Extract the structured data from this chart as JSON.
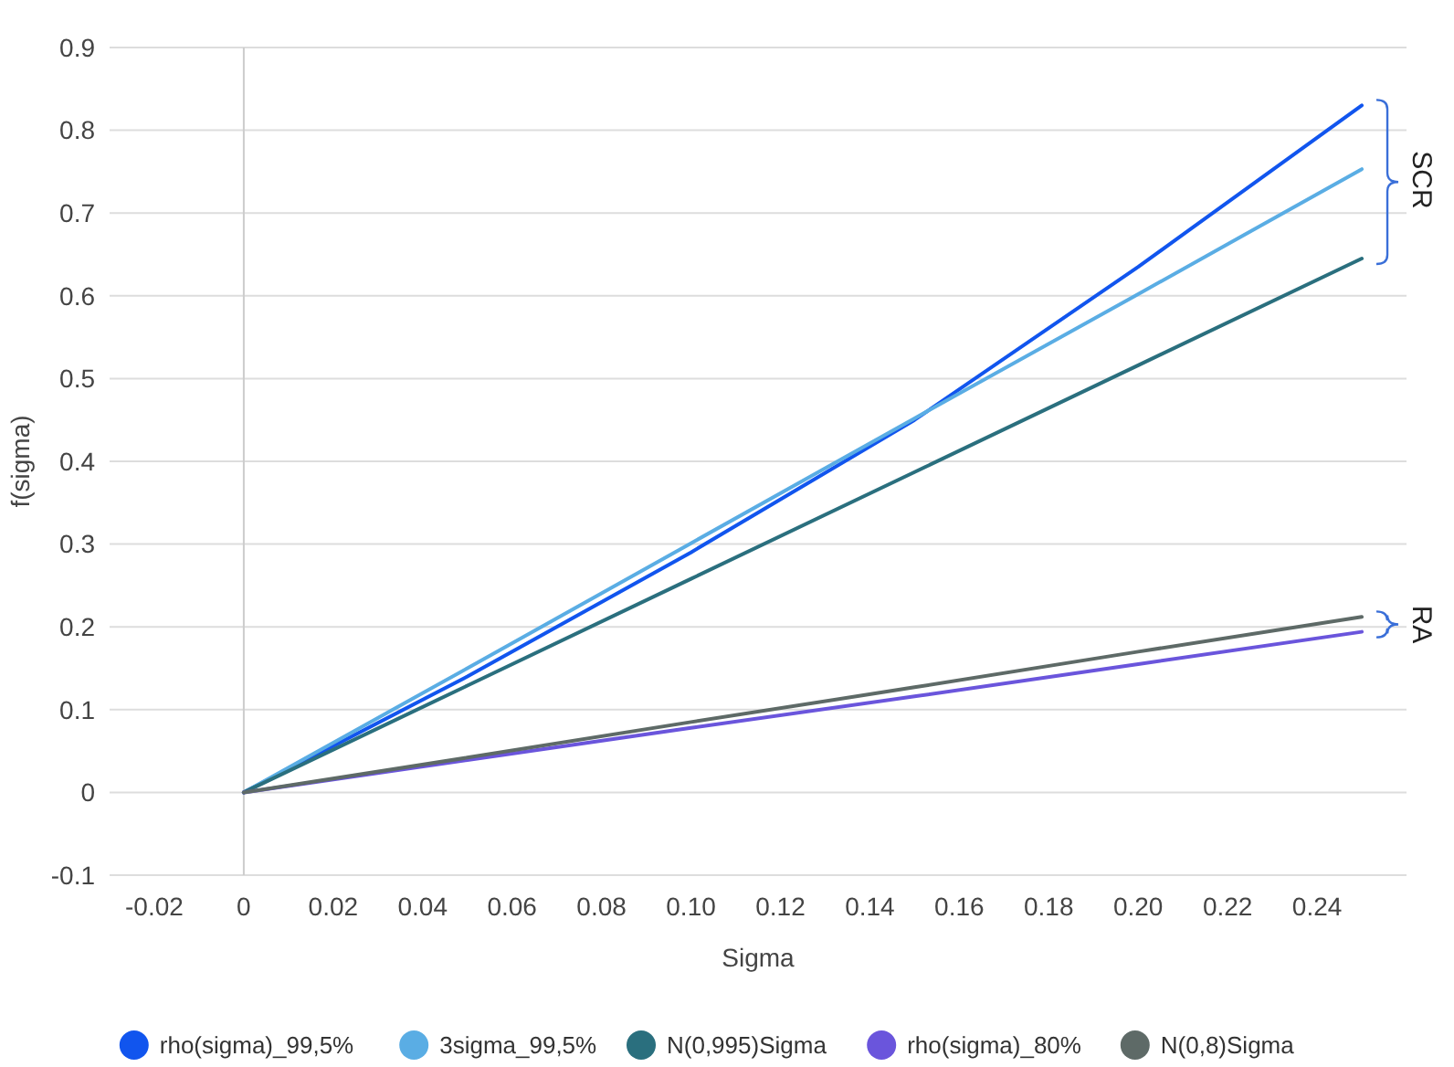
{
  "chart_data": {
    "type": "line",
    "xlabel": "Sigma",
    "ylabel": "f(sigma)",
    "xlim": [
      -0.03,
      0.26
    ],
    "ylim": [
      -0.1,
      0.9
    ],
    "xticks": [
      {
        "value": -0.02,
        "label": "-0.02"
      },
      0,
      {
        "value": 0.02,
        "label": "0.02"
      },
      {
        "value": 0.04,
        "label": "0.04"
      },
      {
        "value": 0.06,
        "label": "0.06"
      },
      {
        "value": 0.08,
        "label": "0.08"
      },
      {
        "value": 0.1,
        "label": "0.10"
      },
      {
        "value": 0.12,
        "label": "0.12"
      },
      {
        "value": 0.14,
        "label": "0.14"
      },
      {
        "value": 0.16,
        "label": "0.16"
      },
      {
        "value": 0.18,
        "label": "0.18"
      },
      {
        "value": 0.2,
        "label": "0.20"
      },
      {
        "value": 0.22,
        "label": "0.22"
      },
      {
        "value": 0.24,
        "label": "0.24"
      }
    ],
    "yticks": [
      -0.1,
      0,
      0.1,
      0.2,
      0.3,
      0.4,
      0.5,
      0.6,
      0.7,
      0.8,
      0.9
    ],
    "grid": "y",
    "legend": "bottom",
    "marker": "none",
    "line_style": "solid",
    "ref_lines": [
      {
        "axis": "x",
        "value": 0,
        "color": "#cccccc"
      }
    ],
    "x": [
      0,
      0.05,
      0.1,
      0.15,
      0.2,
      0.25
    ],
    "series": [
      {
        "name": "rho(sigma)_99,5%",
        "color": "#1155ee",
        "values": [
          0,
          0.14,
          0.29,
          0.45,
          0.635,
          0.83
        ]
      },
      {
        "name": "3sigma_99,5%",
        "color": "#5aade4",
        "values": [
          0,
          0.15,
          0.301,
          0.452,
          0.602,
          0.753
        ]
      },
      {
        "name": "N(0,995)Sigma",
        "color": "#2a6f7e",
        "values": [
          0,
          0.129,
          0.258,
          0.387,
          0.516,
          0.645
        ]
      },
      {
        "name": "rho(sigma)_80%",
        "color": "#6a55dc",
        "values": [
          0,
          0.039,
          0.078,
          0.116,
          0.155,
          0.194
        ]
      },
      {
        "name": "N(0,8)Sigma",
        "color": "#5e6a67",
        "values": [
          0,
          0.042,
          0.085,
          0.127,
          0.17,
          0.212
        ]
      }
    ],
    "annotations": [
      {
        "text": "SCR",
        "x": 0.25,
        "y": 0.74
      },
      {
        "text": "RA",
        "x": 0.25,
        "y": 0.203
      }
    ]
  }
}
